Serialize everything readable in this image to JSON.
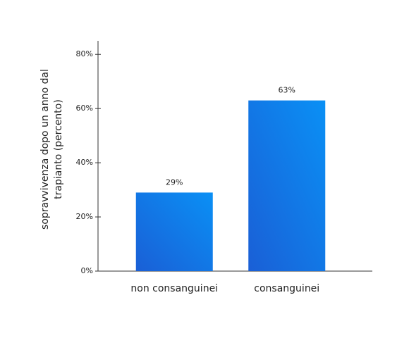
{
  "chart_data": {
    "type": "bar",
    "y_label": "sopravvivenza dopo un anno dal trapianto (percento)",
    "categories": [
      "non consanguinei",
      "consanguinei"
    ],
    "values": [
      29,
      63
    ],
    "value_labels": [
      "29%",
      "63%"
    ],
    "color": "#1a73e8",
    "ylim": [
      0,
      85
    ],
    "yticks": [
      {
        "value": 0,
        "label": "0%"
      },
      {
        "value": 20,
        "label": "20%"
      },
      {
        "value": 40,
        "label": "40%"
      },
      {
        "value": 60,
        "label": "60%"
      },
      {
        "value": 80,
        "label": "80%"
      }
    ]
  }
}
